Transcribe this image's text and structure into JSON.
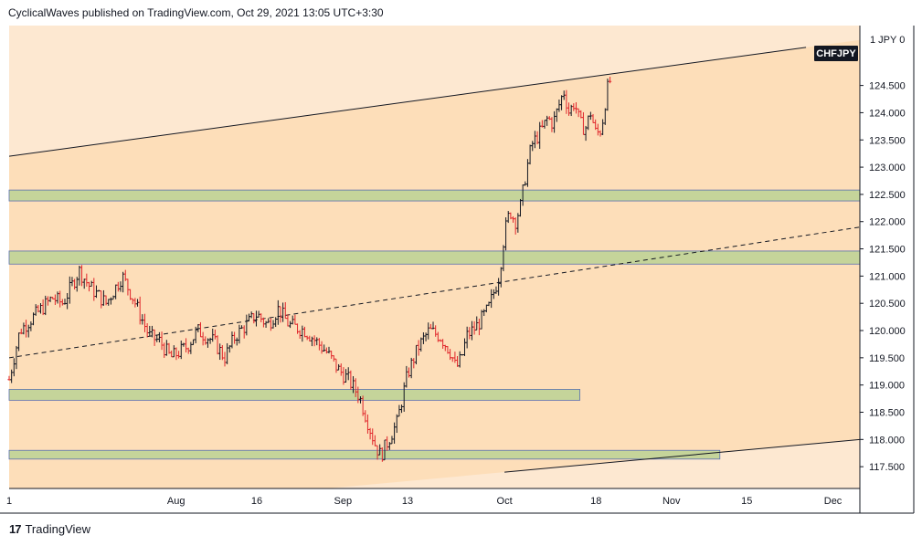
{
  "header": {
    "attribution": "CyclicalWaves published on TradingView.com, Oct 29, 2021 13:05 UTC+3:30"
  },
  "footer": {
    "logo_text": "TradingView",
    "logo_mark": "17"
  },
  "colors": {
    "background": "#ffffff",
    "channel_inner": "#fddeb9",
    "channel_outer": "#fde8d1",
    "zone_fill": "#c5d49a",
    "zone_border": "#5a6fb0",
    "bull": "#131722",
    "bear": "#e0262b",
    "axis_text": "#131722"
  },
  "chart_data": {
    "type": "candlestick",
    "symbol": "CHFJPY",
    "price_axis_top_label": "1 JPY 0",
    "y_ticks": [
      124.5,
      124.0,
      123.5,
      123.0,
      122.5,
      122.0,
      121.5,
      121.0,
      120.5,
      120.0,
      119.5,
      119.0,
      118.5,
      118.0,
      117.5
    ],
    "y_tick_labels": [
      "124.500",
      "124.000",
      "123.500",
      "123.000",
      "122.500",
      "122.000",
      "121.500",
      "121.000",
      "120.500",
      "120.000",
      "119.500",
      "119.000",
      "118.500",
      "118.000",
      "117.500"
    ],
    "x_ticks": [
      {
        "label": "1",
        "day": 0
      },
      {
        "label": "Aug",
        "day": 31
      },
      {
        "label": "16",
        "day": 46
      },
      {
        "label": "Sep",
        "day": 62
      },
      {
        "label": "13",
        "day": 74
      },
      {
        "label": "Oct",
        "day": 92
      },
      {
        "label": "18",
        "day": 109
      },
      {
        "label": "Nov",
        "day": 123
      },
      {
        "label": "15",
        "day": 137
      },
      {
        "label": "Dec",
        "day": 153
      }
    ],
    "x_range_days": [
      0,
      158
    ],
    "ylim": [
      117.1,
      125.6
    ],
    "price_path": [
      [
        0,
        119.1
      ],
      [
        2,
        120.0
      ],
      [
        5,
        120.3
      ],
      [
        8,
        120.6
      ],
      [
        10,
        120.5
      ],
      [
        13,
        121.1
      ],
      [
        15,
        120.8
      ],
      [
        18,
        120.5
      ],
      [
        21,
        121.0
      ],
      [
        23,
        120.6
      ],
      [
        26,
        119.9
      ],
      [
        28,
        119.8
      ],
      [
        30,
        119.5
      ],
      [
        33,
        119.7
      ],
      [
        35,
        120.0
      ],
      [
        38,
        119.8
      ],
      [
        40,
        119.5
      ],
      [
        42,
        119.9
      ],
      [
        44,
        120.1
      ],
      [
        46,
        120.3
      ],
      [
        48,
        120.1
      ],
      [
        50,
        120.4
      ],
      [
        52,
        120.1
      ],
      [
        55,
        120.0
      ],
      [
        57,
        119.8
      ],
      [
        59,
        119.6
      ],
      [
        61,
        119.3
      ],
      [
        63,
        119.1
      ],
      [
        65,
        118.8
      ],
      [
        67,
        118.2
      ],
      [
        68,
        117.9
      ],
      [
        69,
        117.7
      ],
      [
        70,
        117.9
      ],
      [
        72,
        118.3
      ],
      [
        74,
        119.2
      ],
      [
        76,
        119.7
      ],
      [
        78,
        120.0
      ],
      [
        80,
        119.9
      ],
      [
        82,
        119.6
      ],
      [
        83,
        119.3
      ],
      [
        84,
        119.5
      ],
      [
        85,
        119.9
      ],
      [
        87,
        120.1
      ],
      [
        89,
        120.4
      ],
      [
        91,
        121.0
      ],
      [
        92,
        121.8
      ],
      [
        93,
        122.2
      ],
      [
        94,
        122.0
      ],
      [
        95,
        122.3
      ],
      [
        96,
        122.9
      ],
      [
        97,
        123.4
      ],
      [
        99,
        123.7
      ],
      [
        100,
        123.9
      ],
      [
        101,
        123.8
      ],
      [
        102,
        124.1
      ],
      [
        103,
        124.4
      ],
      [
        104,
        124.0
      ],
      [
        105,
        124.2
      ],
      [
        106,
        123.8
      ],
      [
        107,
        123.7
      ],
      [
        108,
        124.0
      ],
      [
        109,
        123.6
      ],
      [
        110,
        123.7
      ],
      [
        111,
        124.4
      ],
      [
        112,
        124.7
      ]
    ],
    "price_path_seed": 7,
    "channel_upper": [
      [
        0,
        123.2
      ],
      [
        148,
        125.2
      ]
    ],
    "channel_lower": [
      [
        92,
        117.4
      ],
      [
        158,
        118.0
      ]
    ],
    "mid_line": [
      [
        0,
        119.5
      ],
      [
        158,
        121.9
      ]
    ],
    "supply_demand_zones": [
      {
        "low": 122.38,
        "high": 122.58,
        "x_end": 158
      },
      {
        "low": 121.22,
        "high": 121.46,
        "x_end": 158
      },
      {
        "low": 118.72,
        "high": 118.92,
        "x_end": 106
      },
      {
        "low": 117.64,
        "high": 117.8,
        "x_end": 132
      }
    ]
  }
}
